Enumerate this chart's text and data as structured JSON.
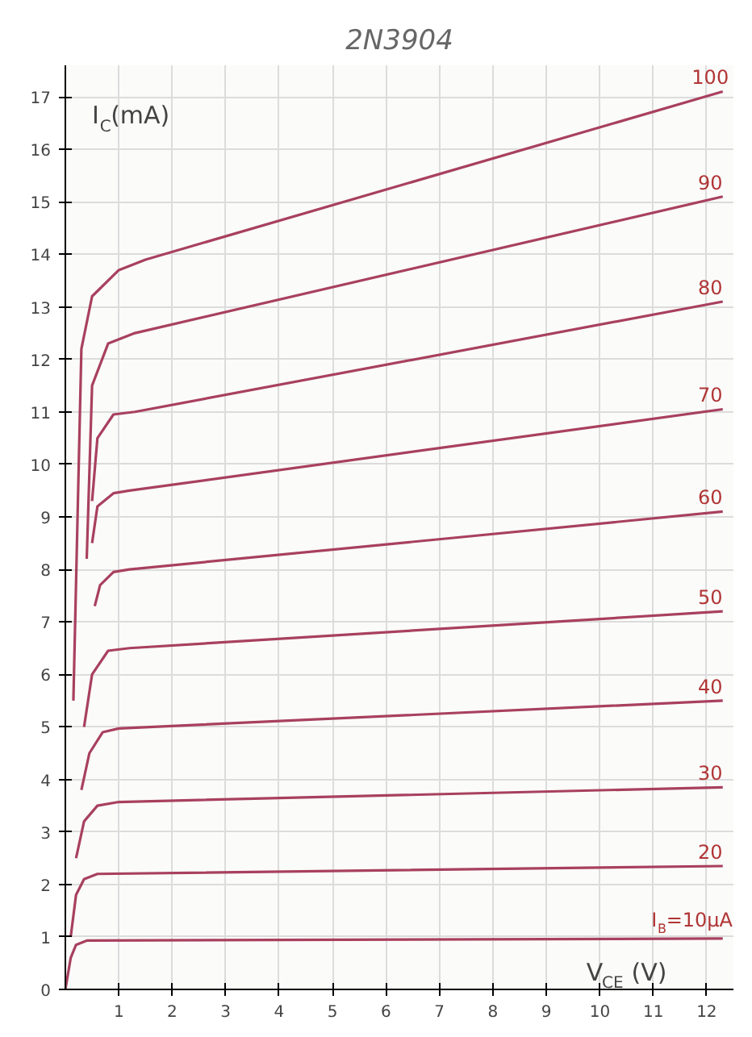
{
  "chart_data": {
    "type": "line",
    "title": "2N3904",
    "xlabel": "V$_{CE}$ (V)",
    "ylabel": "I$_{C}$(mA)",
    "xlim": [
      0,
      12.5
    ],
    "ylim": [
      0,
      17.6
    ],
    "xticks": [
      1,
      2,
      3,
      4,
      5,
      6,
      7,
      8,
      9,
      10,
      11,
      12
    ],
    "yticks": [
      0,
      1,
      2,
      3,
      4,
      5,
      6,
      7,
      8,
      9,
      10,
      11,
      12,
      13,
      14,
      15,
      16,
      17
    ],
    "grid": true,
    "legend": false,
    "marker": "none",
    "line_style": "solid",
    "series": [
      {
        "name": "I$_{B}$=10μA",
        "color": "#a8405e",
        "x": [
          0,
          0.1,
          0.2,
          0.4,
          12.3
        ],
        "values": [
          0,
          0.6,
          0.85,
          0.93,
          0.97
        ]
      },
      {
        "name": "20",
        "color": "#a8405e",
        "x": [
          0.1,
          0.2,
          0.35,
          0.6,
          12.3
        ],
        "values": [
          1.0,
          1.8,
          2.1,
          2.2,
          2.35
        ]
      },
      {
        "name": "30",
        "color": "#a8405e",
        "x": [
          0.2,
          0.35,
          0.6,
          1,
          12.3
        ],
        "values": [
          2.5,
          3.2,
          3.5,
          3.57,
          3.85
        ]
      },
      {
        "name": "40",
        "color": "#a8405e",
        "x": [
          0.3,
          0.45,
          0.7,
          1,
          12.3
        ],
        "values": [
          3.8,
          4.5,
          4.9,
          4.97,
          5.5
        ]
      },
      {
        "name": "50",
        "color": "#a8405e",
        "x": [
          0.35,
          0.5,
          0.8,
          1.2,
          12.3
        ],
        "values": [
          5.0,
          6.0,
          6.45,
          6.5,
          7.2
        ]
      },
      {
        "name": "60",
        "color": "#a8405e",
        "x": [
          0.55,
          0.65,
          0.9,
          1.2,
          12.3
        ],
        "values": [
          7.3,
          7.7,
          7.95,
          8.0,
          9.1
        ]
      },
      {
        "name": "70",
        "color": "#a8405e",
        "x": [
          0.5,
          0.6,
          0.9,
          1.2,
          12.3
        ],
        "values": [
          8.5,
          9.2,
          9.45,
          9.5,
          11.05
        ]
      },
      {
        "name": "80",
        "color": "#a8405e",
        "x": [
          0.5,
          0.6,
          0.9,
          1.3,
          12.3
        ],
        "values": [
          9.3,
          10.5,
          10.95,
          11.0,
          13.1
        ]
      },
      {
        "name": "90",
        "color": "#a8405e",
        "x": [
          0.4,
          0.5,
          0.8,
          1.3,
          12.3
        ],
        "values": [
          8.2,
          11.5,
          12.3,
          12.5,
          15.1
        ]
      },
      {
        "name": "100",
        "color": "#a8405e",
        "x": [
          0.15,
          0.3,
          0.5,
          1,
          1.5,
          12.3
        ],
        "values": [
          5.5,
          12.2,
          13.2,
          13.7,
          13.9,
          17.1
        ]
      }
    ]
  }
}
